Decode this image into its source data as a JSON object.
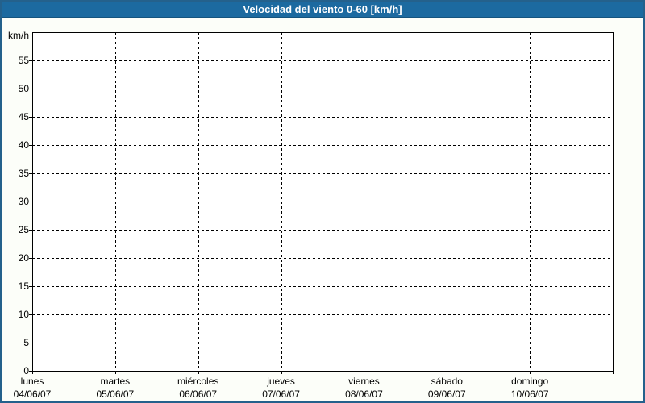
{
  "colors": {
    "title_bar_bg": "#1c6aa0",
    "title_text": "#ffffff",
    "page_bg": "#fcfef9",
    "page_border": "#24618c",
    "plot_bg": "#ffffff",
    "grid": "#000000",
    "label_text": "#000000"
  },
  "header": {
    "title": "Velocidad del viento 0-60 [km/h]"
  },
  "chart_data": {
    "type": "line",
    "title": "Velocidad del viento 0-60 [km/h]",
    "xlabel": "",
    "ylabel": "km/h",
    "ylim": [
      0,
      60
    ],
    "y_ticks": [
      0,
      5,
      10,
      15,
      20,
      25,
      30,
      35,
      40,
      45,
      50,
      55
    ],
    "grid": "dashed",
    "legend": "none",
    "categories": [
      {
        "day": "lunes",
        "date": "04/06/07"
      },
      {
        "day": "martes",
        "date": "05/06/07"
      },
      {
        "day": "miércoles",
        "date": "06/06/07"
      },
      {
        "day": "jueves",
        "date": "07/06/07"
      },
      {
        "day": "viernes",
        "date": "08/06/07"
      },
      {
        "day": "sábado",
        "date": "09/06/07"
      },
      {
        "day": "domingo",
        "date": "10/06/07"
      }
    ],
    "series": []
  }
}
